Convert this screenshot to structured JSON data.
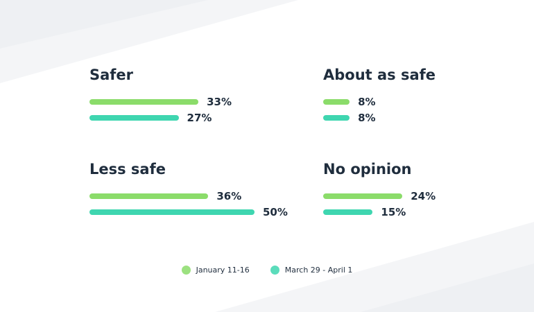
{
  "chart_data": {
    "type": "bar",
    "orientation": "horizontal",
    "layout": "small-multiples-2x2",
    "legend_placement": "bottom-center",
    "series": [
      {
        "name": "January 11-16",
        "color": "#8bdc6a"
      },
      {
        "name": "March 29 - April 1",
        "color": "#3fd6b0"
      }
    ],
    "panels": [
      {
        "title": "Safer",
        "values": [
          33,
          27
        ],
        "labels": [
          "33%",
          "27%"
        ]
      },
      {
        "title": "About as safe",
        "values": [
          8,
          8
        ],
        "labels": [
          "8%",
          "8%"
        ]
      },
      {
        "title": "Less safe",
        "values": [
          36,
          50
        ],
        "labels": [
          "36%",
          "50%"
        ]
      },
      {
        "title": "No opinion",
        "values": [
          24,
          15
        ],
        "labels": [
          "24%",
          "15%"
        ]
      }
    ],
    "unit": "%",
    "grid": false
  }
}
